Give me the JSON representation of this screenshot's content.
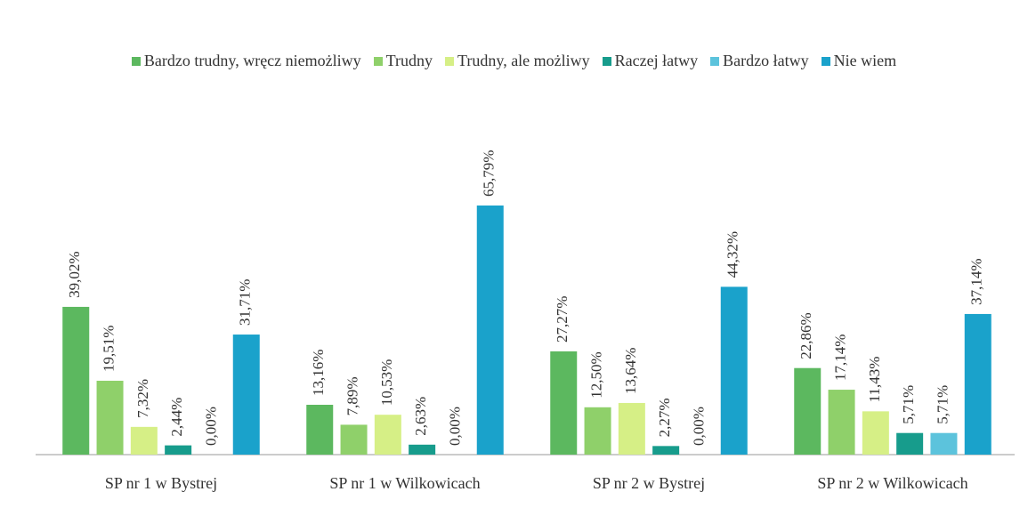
{
  "chart_data": {
    "type": "bar",
    "categories": [
      "SP nr 1 w Bystrej",
      "SP nr 1 w Wilkowicach",
      "SP nr 2 w Bystrej",
      "SP nr 2 w Wilkowicach"
    ],
    "series": [
      {
        "name": "Bardzo trudny, wręcz niemożliwy",
        "color": "#5cb85f",
        "values": [
          39.02,
          13.16,
          27.27,
          22.86
        ],
        "value_labels": [
          "39,02%",
          "13,16%",
          "27,27%",
          "22,86%"
        ]
      },
      {
        "name": "Trudny",
        "color": "#8fd06a",
        "values": [
          19.51,
          7.89,
          12.5,
          17.14
        ],
        "value_labels": [
          "19,51%",
          "7,89%",
          "12,50%",
          "17,14%"
        ]
      },
      {
        "name": "Trudny, ale możliwy",
        "color": "#d6ef86",
        "values": [
          7.32,
          10.53,
          13.64,
          11.43
        ],
        "value_labels": [
          "7,32%",
          "10,53%",
          "13,64%",
          "11,43%"
        ]
      },
      {
        "name": "Raczej łatwy",
        "color": "#179c8c",
        "values": [
          2.44,
          2.63,
          2.27,
          5.71
        ],
        "value_labels": [
          "2,44%",
          "2,63%",
          "2,27%",
          "5,71%"
        ]
      },
      {
        "name": "Bardzo łatwy",
        "color": "#5cc3dc",
        "values": [
          0.0,
          0.0,
          0.0,
          5.71
        ],
        "value_labels": [
          "0,00%",
          "0,00%",
          "0,00%",
          "5,71%"
        ]
      },
      {
        "name": "Nie wiem",
        "color": "#1aa2cb",
        "values": [
          31.71,
          65.79,
          44.32,
          37.14
        ],
        "value_labels": [
          "31,71%",
          "65,79%",
          "44,32%",
          "37,14%"
        ]
      }
    ]
  }
}
